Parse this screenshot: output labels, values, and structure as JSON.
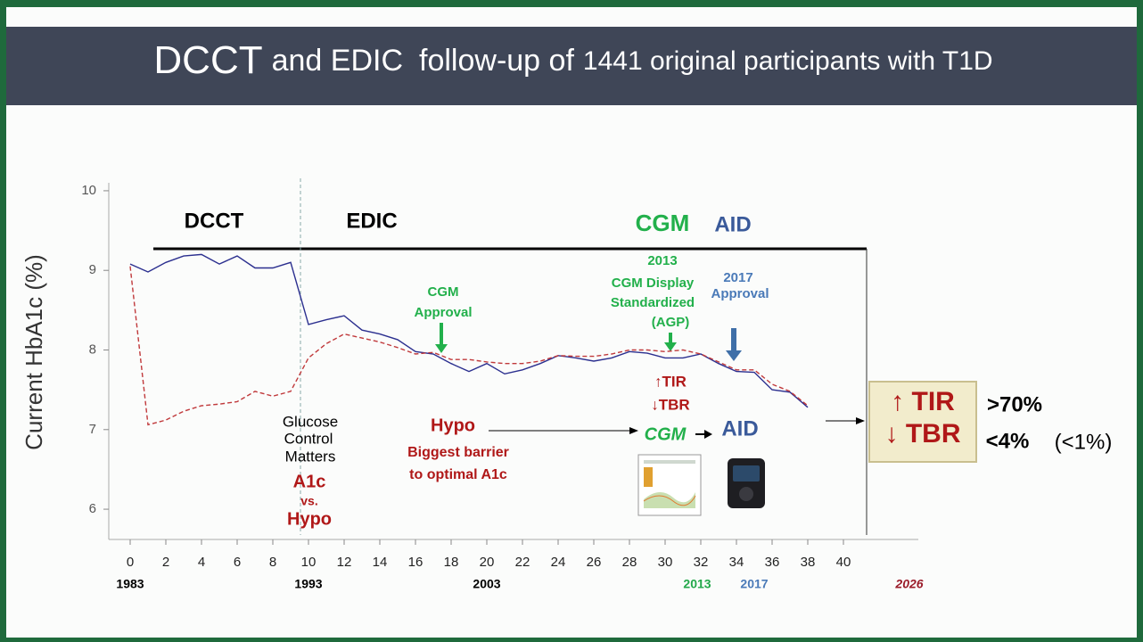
{
  "title_parts": [
    "DCCT",
    "and EDIC",
    "follow-up of",
    "1441 original participants with T1D"
  ],
  "chart_data": {
    "type": "line",
    "y_label": "Current HbA1c (%)",
    "x": [
      0,
      1,
      2,
      3,
      4,
      5,
      6,
      7,
      8,
      9,
      10,
      11,
      12,
      13,
      14,
      15,
      16,
      17,
      18,
      19,
      20,
      21,
      22,
      23,
      24,
      25,
      26,
      27,
      28,
      29,
      30,
      31,
      32,
      33,
      34,
      35,
      36,
      37,
      38
    ],
    "series": [
      {
        "color": "#2b2f8f",
        "dash": false,
        "values": [
          9.08,
          8.98,
          9.1,
          9.18,
          9.2,
          9.08,
          9.18,
          9.03,
          9.03,
          9.1,
          8.32,
          8.38,
          8.43,
          8.25,
          8.2,
          8.13,
          7.98,
          7.95,
          7.83,
          7.73,
          7.83,
          7.7,
          7.75,
          7.83,
          7.93,
          7.9,
          7.86,
          7.9,
          7.98,
          7.96,
          7.9,
          7.9,
          7.95,
          7.83,
          7.73,
          7.72,
          7.5,
          7.47,
          7.28
        ]
      },
      {
        "color": "#c0393b",
        "dash": true,
        "values": [
          9.05,
          7.06,
          7.12,
          7.23,
          7.3,
          7.32,
          7.35,
          7.48,
          7.42,
          7.48,
          7.9,
          8.08,
          8.2,
          8.15,
          8.1,
          8.03,
          7.95,
          7.97,
          7.88,
          7.88,
          7.85,
          7.83,
          7.83,
          7.86,
          7.93,
          7.92,
          7.92,
          7.95,
          8.0,
          8.0,
          7.98,
          8.0,
          7.95,
          7.85,
          7.75,
          7.75,
          7.57,
          7.48,
          7.3
        ]
      }
    ],
    "xlim": [
      -1.2,
      44.2
    ],
    "ylim": [
      5.62,
      10.1
    ],
    "xticks": [
      0,
      2,
      4,
      6,
      8,
      10,
      12,
      14,
      16,
      18,
      20,
      22,
      24,
      26,
      28,
      30,
      32,
      34,
      36,
      38,
      40
    ],
    "yticks": [
      6,
      7,
      8,
      9,
      10
    ],
    "year_labels": [
      {
        "value": 0,
        "label": "1983",
        "color": "#000000"
      },
      {
        "value": 10,
        "label": "1993",
        "color": "#000000"
      },
      {
        "value": 20,
        "label": "2003",
        "color": "#000000"
      },
      {
        "value": 31.8,
        "label": "2013",
        "color": "#22a84a"
      },
      {
        "value": 35,
        "label": "2017",
        "color": "#4a7ab8"
      },
      {
        "value": 43.7,
        "label": "2026",
        "color": "#9b1c2a"
      }
    ]
  },
  "annotations": [
    "DCCT",
    "EDIC",
    "CGM",
    "AID",
    "2013",
    "CGM Display",
    "Standardized",
    "(AGP)",
    "2017",
    "Approval",
    "CGM",
    "Approval",
    "↑TIR",
    "↓TBR",
    "Glucose",
    "Control",
    "Matters",
    "A1c",
    "vs.",
    "Hypo",
    "Hypo",
    "Biggest barrier",
    "to optimal A1c",
    "CGM",
    "AID",
    "↑ TIR",
    "↓ TBR",
    ">70%",
    "<4%",
    "(<1%)"
  ]
}
